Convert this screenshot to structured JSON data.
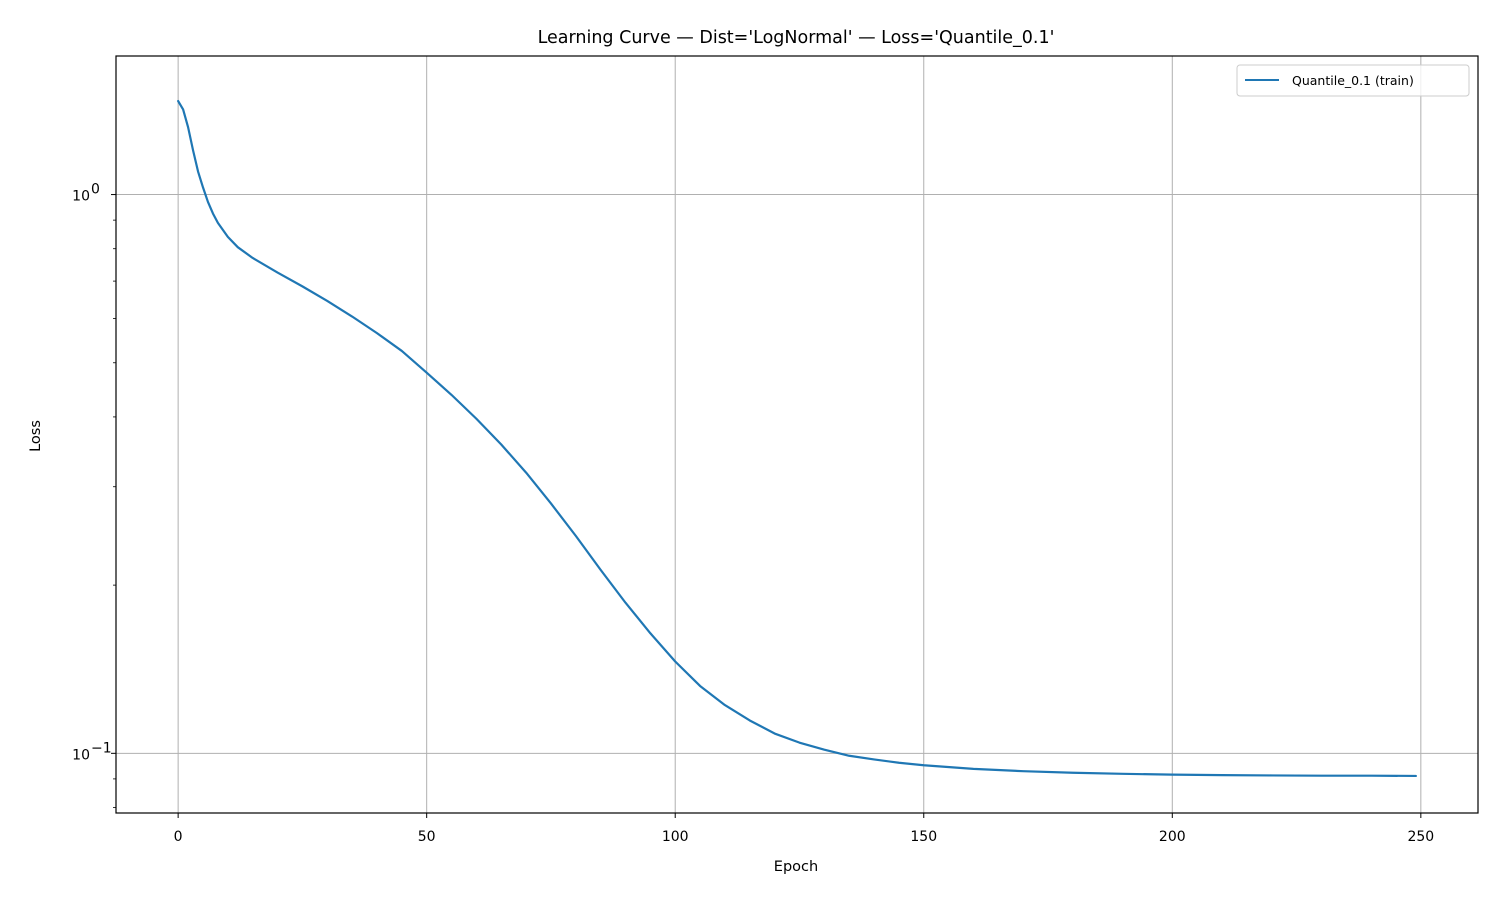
{
  "chart_data": {
    "type": "line",
    "title": "Learning Curve — Dist='LogNormal' — Loss='Quantile_0.1'",
    "xlabel": "Epoch",
    "ylabel": "Loss",
    "xlim": [
      -12.5,
      261.5
    ],
    "ylim": [
      0.0782,
      1.77
    ],
    "yscale": "log",
    "grid": true,
    "legend_position": "top-right",
    "x_ticks": [
      0,
      50,
      100,
      150,
      200,
      250
    ],
    "y_ticks": [
      {
        "value": 1.0,
        "base": "10",
        "exp": "0"
      },
      {
        "value": 0.1,
        "base": "10",
        "exp": "−1"
      }
    ],
    "series": [
      {
        "name": "Quantile_0.1 (train)",
        "color": "#1f77b4",
        "x": [
          0,
          1,
          2,
          3,
          4,
          5,
          6,
          7,
          8,
          10,
          12,
          15,
          20,
          25,
          30,
          35,
          40,
          45,
          50,
          55,
          60,
          65,
          70,
          75,
          80,
          85,
          90,
          95,
          100,
          105,
          110,
          115,
          120,
          125,
          130,
          135,
          140,
          145,
          150,
          160,
          170,
          180,
          190,
          200,
          210,
          220,
          230,
          240,
          249
        ],
        "y": [
          1.47,
          1.42,
          1.32,
          1.2,
          1.1,
          1.03,
          0.97,
          0.925,
          0.89,
          0.84,
          0.805,
          0.77,
          0.725,
          0.685,
          0.645,
          0.605,
          0.565,
          0.525,
          0.48,
          0.438,
          0.397,
          0.357,
          0.318,
          0.28,
          0.245,
          0.213,
          0.186,
          0.164,
          0.146,
          0.132,
          0.122,
          0.1145,
          0.1085,
          0.1045,
          0.1015,
          0.099,
          0.0975,
          0.0962,
          0.0952,
          0.0938,
          0.0929,
          0.0923,
          0.0919,
          0.0916,
          0.0914,
          0.0913,
          0.0912,
          0.0912,
          0.0911
        ]
      }
    ]
  }
}
